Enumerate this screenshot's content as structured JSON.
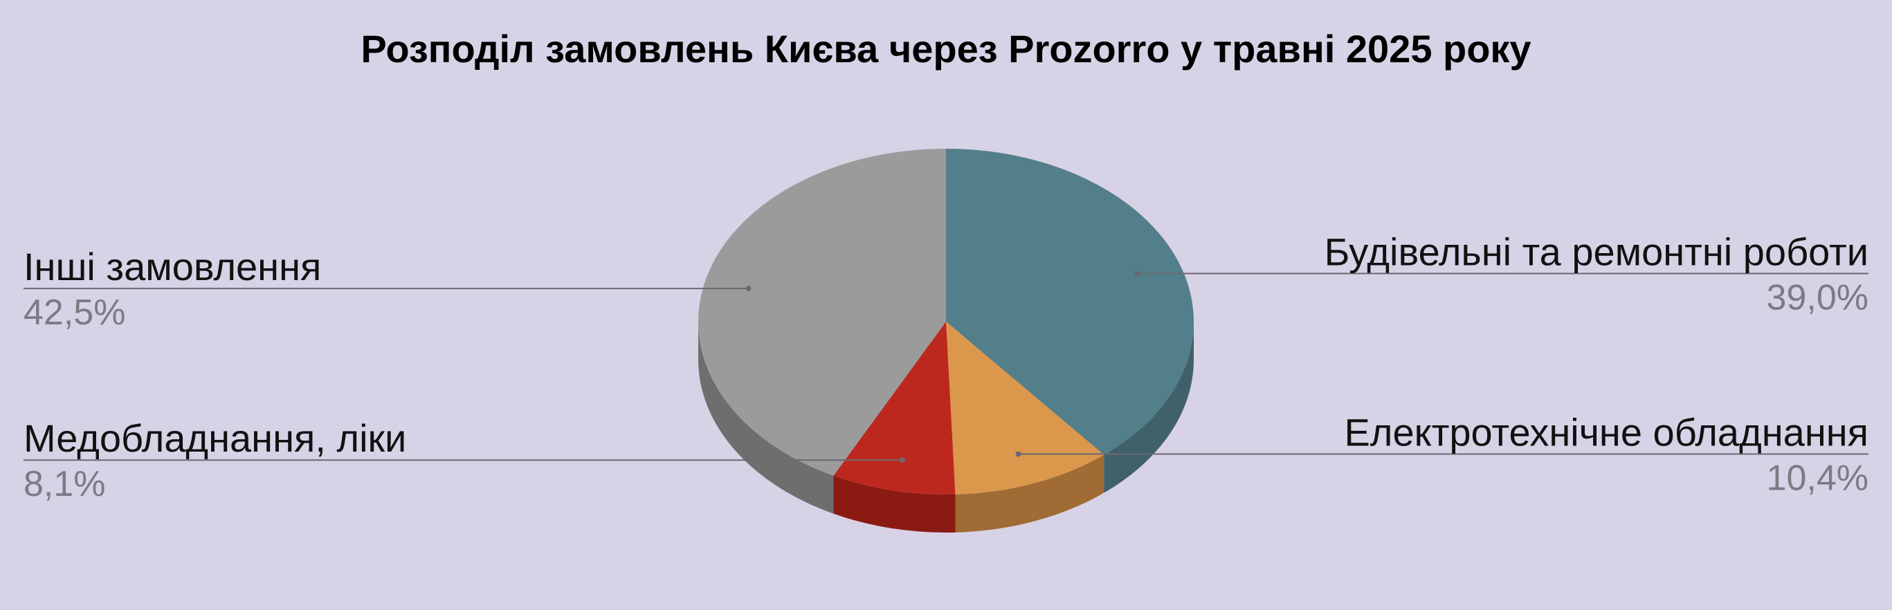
{
  "chart_data": {
    "type": "pie",
    "title": "Розподіл замовлень Києва через Prozorro у травні 2025 року",
    "slices": [
      {
        "label": "Будівельні та ремонтні роботи",
        "value": 39.0,
        "value_label": "39,0%",
        "color": "#537f8a",
        "side_color": "#41616a",
        "label_side": "right"
      },
      {
        "label": "Електротехнічне обладнання",
        "value": 10.4,
        "value_label": "10,4%",
        "color": "#db974b",
        "side_color": "#a06b34",
        "label_side": "right"
      },
      {
        "label": "Медобладнання, ліки",
        "value": 8.1,
        "value_label": "8,1%",
        "color": "#bd281e",
        "side_color": "#8b1a13",
        "label_side": "left"
      },
      {
        "label": "Інші замовлення",
        "value": 42.5,
        "value_label": "42,5%",
        "color": "#9b9b9b",
        "side_color": "#6e6e6e",
        "label_side": "left"
      }
    ],
    "start_angle": "12 o'clock",
    "direction": "clockwise",
    "style": "3d"
  },
  "colors": {
    "background": "#d8d2e6",
    "title": "#000000",
    "label": "#111111",
    "percent": "#7d7a84",
    "leader": "#6b6872"
  }
}
